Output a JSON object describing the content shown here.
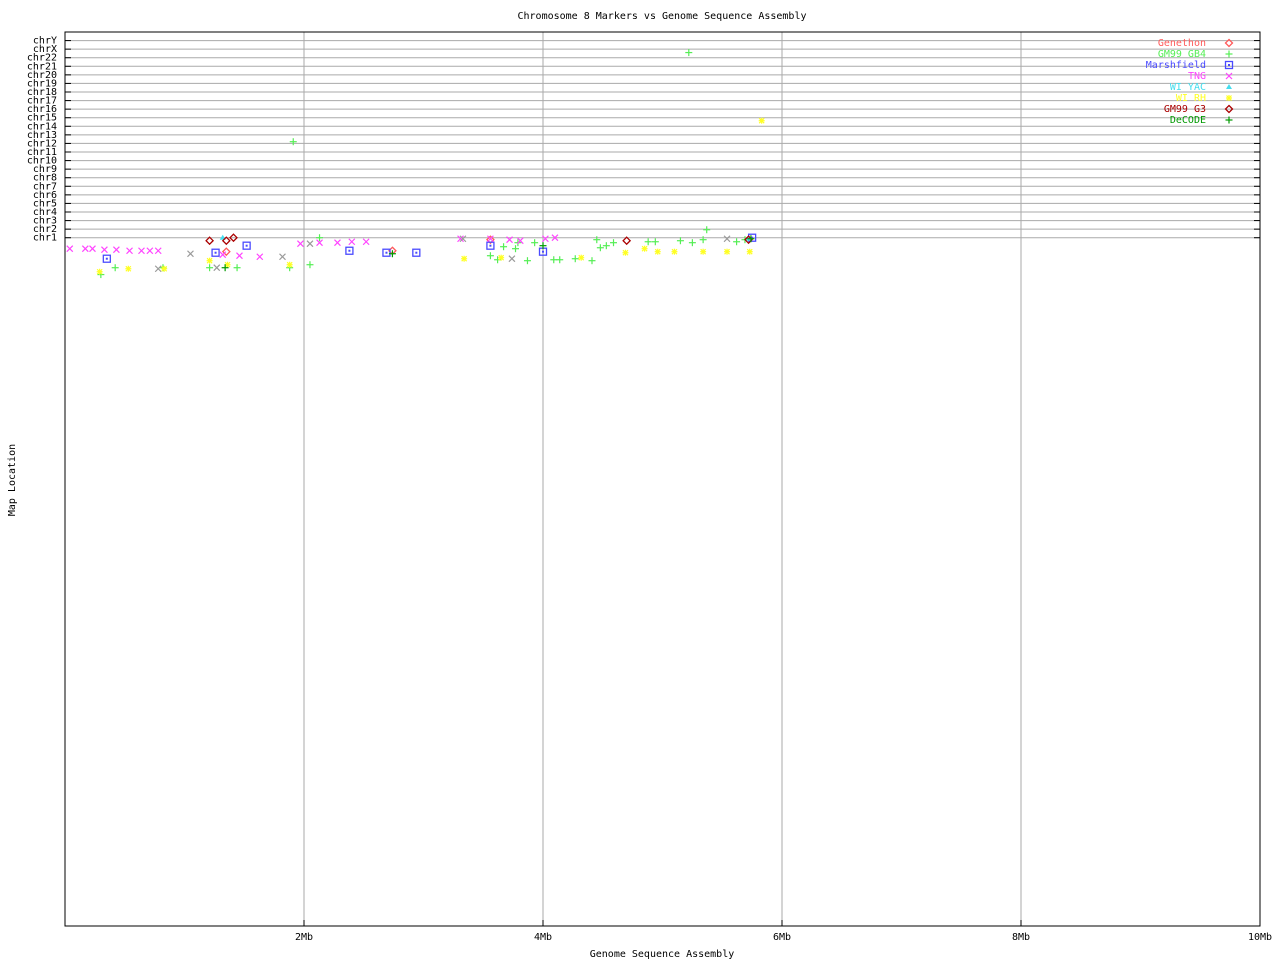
{
  "chart_data": {
    "type": "scatter",
    "title": "Chromosome 8 Markers vs Genome Sequence Assembly",
    "xlabel": "Genome Sequence Assembly",
    "ylabel": "Map Location",
    "xlim": [
      0,
      10
    ],
    "x_unit": "Mb",
    "x_ticks": [
      2,
      4,
      6,
      8,
      10
    ],
    "x_tick_labels": [
      "2Mb",
      "4Mb",
      "6Mb",
      "8Mb",
      "10Mb"
    ],
    "ylim": [
      -79.3,
      25.0
    ],
    "y_ticks": [
      1,
      2,
      3,
      4,
      5,
      6,
      7,
      8,
      9,
      10,
      11,
      12,
      13,
      14,
      15,
      16,
      17,
      18,
      19,
      20,
      21,
      22,
      23,
      24
    ],
    "y_tick_labels": [
      "chr1",
      "chr2",
      "chr3",
      "chr4",
      "chr5",
      "chr6",
      "chr7",
      "chr8",
      "chr9",
      "chr10",
      "chr11",
      "chr12",
      "chr13",
      "chr14",
      "chr15",
      "chr16",
      "chr17",
      "chr18",
      "chr19",
      "chr20",
      "chr21",
      "chr22",
      "chrX",
      "chrY"
    ],
    "grid": "horizontal at each chromosome, vertical at x ticks",
    "legend_position": "top-right",
    "series": [
      {
        "name": "Genethon",
        "color": "#ff5a5a",
        "marker": "diamond",
        "points": [
          [
            1.35,
            -0.63
          ],
          [
            2.74,
            -0.52
          ],
          [
            3.56,
            0.77
          ]
        ]
      },
      {
        "name": "GM99 GB4",
        "color": "#55ee55",
        "marker": "plus",
        "points": [
          [
            5.22,
            22.6
          ],
          [
            1.91,
            12.2
          ],
          [
            0.3,
            -3.3
          ],
          [
            0.42,
            -2.5
          ],
          [
            0.82,
            -2.5
          ],
          [
            1.21,
            -2.5
          ],
          [
            1.44,
            -2.5
          ],
          [
            1.88,
            -2.5
          ],
          [
            2.05,
            -2.15
          ],
          [
            2.13,
            1.0
          ],
          [
            3.56,
            -1.1
          ],
          [
            3.62,
            -1.57
          ],
          [
            3.67,
            -0.05
          ],
          [
            3.77,
            -0.28
          ],
          [
            3.79,
            0.42
          ],
          [
            3.87,
            -1.68
          ],
          [
            3.93,
            0.42
          ],
          [
            4.09,
            -1.57
          ],
          [
            4.14,
            -1.57
          ],
          [
            4.27,
            -1.45
          ],
          [
            4.41,
            -1.68
          ],
          [
            4.45,
            0.77
          ],
          [
            4.48,
            -0.17
          ],
          [
            4.53,
            0.07
          ],
          [
            4.59,
            0.42
          ],
          [
            4.88,
            0.53
          ],
          [
            4.94,
            0.53
          ],
          [
            5.15,
            0.65
          ],
          [
            5.25,
            0.42
          ],
          [
            5.34,
            0.77
          ],
          [
            5.37,
            1.93
          ],
          [
            5.62,
            0.53
          ],
          [
            5.69,
            0.77
          ]
        ]
      },
      {
        "name": "Marshfield",
        "color": "#4a4aff",
        "marker": "square",
        "points": [
          [
            0.35,
            -1.45
          ],
          [
            1.26,
            -0.75
          ],
          [
            1.52,
            0.07
          ],
          [
            2.38,
            -0.52
          ],
          [
            2.69,
            -0.75
          ],
          [
            2.94,
            -0.75
          ],
          [
            3.56,
            0.07
          ],
          [
            4.0,
            -0.63
          ],
          [
            5.75,
            1.0
          ]
        ]
      },
      {
        "name": "TNG",
        "color": "#ff44ff",
        "marker": "x",
        "points": [
          [
            0.04,
            -0.28
          ],
          [
            0.17,
            -0.28
          ],
          [
            0.23,
            -0.28
          ],
          [
            0.33,
            -0.4
          ],
          [
            0.43,
            -0.4
          ],
          [
            0.54,
            -0.52
          ],
          [
            0.64,
            -0.52
          ],
          [
            0.71,
            -0.52
          ],
          [
            0.78,
            -0.52
          ],
          [
            1.32,
            -0.98
          ],
          [
            1.46,
            -1.1
          ],
          [
            1.63,
            -1.22
          ],
          [
            1.97,
            0.3
          ],
          [
            2.13,
            0.42
          ],
          [
            2.28,
            0.42
          ],
          [
            2.4,
            0.53
          ],
          [
            2.52,
            0.53
          ],
          [
            3.31,
            0.88
          ],
          [
            3.56,
            0.88
          ],
          [
            3.72,
            0.77
          ],
          [
            3.81,
            0.65
          ],
          [
            4.02,
            0.88
          ],
          [
            4.1,
            1.0
          ]
        ]
      },
      {
        "name": "WI YAC",
        "color": "#44ddee",
        "marker": "triangle",
        "points": [
          [
            1.32,
            1.0
          ],
          [
            5.72,
            0.88
          ]
        ]
      },
      {
        "name": "WI RH",
        "color": "#ffff22",
        "marker": "star",
        "points": [
          [
            5.83,
            14.65
          ],
          [
            0.29,
            -2.97
          ],
          [
            0.53,
            -2.62
          ],
          [
            0.83,
            -2.62
          ],
          [
            1.21,
            -1.68
          ],
          [
            1.36,
            -2.15
          ],
          [
            1.88,
            -2.15
          ],
          [
            3.34,
            -1.45
          ],
          [
            3.65,
            -1.33
          ],
          [
            4.32,
            -1.33
          ],
          [
            4.69,
            -0.75
          ],
          [
            4.85,
            -0.28
          ],
          [
            4.96,
            -0.63
          ],
          [
            5.1,
            -0.63
          ],
          [
            5.34,
            -0.63
          ],
          [
            5.54,
            -0.63
          ],
          [
            5.73,
            -0.63
          ]
        ]
      },
      {
        "name": "GM99 G3",
        "color": "#aa0000",
        "marker": "diamond",
        "points": [
          [
            1.21,
            0.65
          ],
          [
            1.35,
            0.65
          ],
          [
            1.41,
            1.0
          ],
          [
            4.7,
            0.65
          ],
          [
            5.72,
            0.77
          ]
        ]
      },
      {
        "name": "DeCODE",
        "color": "#009900",
        "marker": "plus",
        "points": [
          [
            1.34,
            -2.5
          ],
          [
            2.74,
            -0.87
          ],
          [
            4.0,
            0.07
          ],
          [
            5.74,
            0.88
          ]
        ]
      },
      {
        "color": "#999999",
        "marker": "x",
        "points": [
          [
            1.05,
            -0.87
          ],
          [
            1.27,
            -2.5
          ],
          [
            1.82,
            -1.22
          ],
          [
            2.05,
            0.3
          ],
          [
            3.74,
            -1.45
          ],
          [
            3.33,
            0.88
          ],
          [
            5.54,
            0.88
          ],
          [
            0.78,
            -2.62
          ]
        ]
      }
    ]
  }
}
